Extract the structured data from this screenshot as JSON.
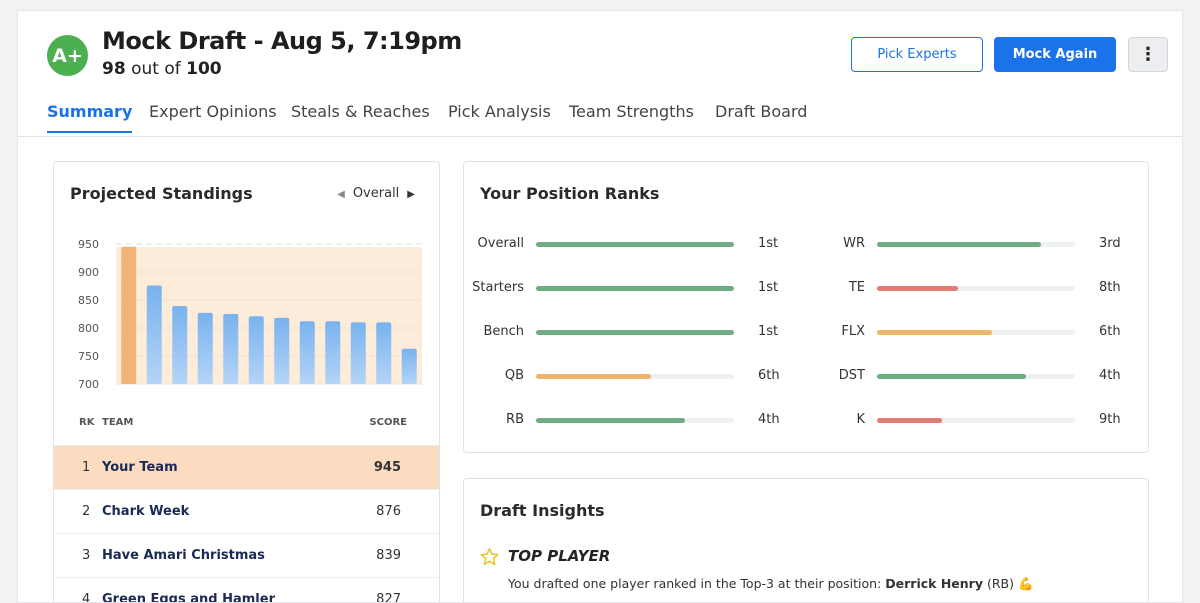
{
  "header": {
    "grade": "A+",
    "title": "Mock Draft - Aug 5, 7:19pm",
    "score": "98",
    "score_mid": "out of",
    "score_max": "100",
    "pick_experts": "Pick Experts",
    "mock_again": "Mock Again",
    "more": "⋮"
  },
  "tabs": [
    {
      "label": "Summary",
      "active": true
    },
    {
      "label": "Expert Opinions"
    },
    {
      "label": "Steals & Reaches"
    },
    {
      "label": "Pick Analysis"
    },
    {
      "label": "Team Strengths"
    },
    {
      "label": "Draft Board"
    }
  ],
  "standings": {
    "title": "Projected Standings",
    "filter": "Overall",
    "col_rk": "RK",
    "col_team": "TEAM",
    "col_score": "SCORE",
    "rows": [
      {
        "rk": "1",
        "team": "Your Team",
        "score": "945"
      },
      {
        "rk": "2",
        "team": "Chark Week",
        "score": "876"
      },
      {
        "rk": "3",
        "team": "Have Amari Christmas",
        "score": "839"
      },
      {
        "rk": "4",
        "team": "Green Eggs and Hamler",
        "score": "827"
      }
    ]
  },
  "chart_data": {
    "type": "bar",
    "categories": [
      "1",
      "2",
      "3",
      "4",
      "5",
      "6",
      "7",
      "8",
      "9",
      "10",
      "11",
      "12"
    ],
    "values": [
      945,
      876,
      839,
      827,
      825,
      821,
      818,
      812,
      812,
      810,
      810,
      763
    ],
    "ylim": [
      700,
      950
    ],
    "yticks": [
      "950",
      "900",
      "850",
      "800",
      "750",
      "700"
    ],
    "highlight_index": 0,
    "colors": {
      "highlight": "#f0b478",
      "default": "#7fb5ee",
      "band": "#fdecd9"
    }
  },
  "ranks": {
    "title": "Your Position Ranks",
    "left": [
      {
        "label": "Overall",
        "rank": "1st",
        "pct": 100,
        "color": "#6fab83"
      },
      {
        "label": "Starters",
        "rank": "1st",
        "pct": 100,
        "color": "#6fab83"
      },
      {
        "label": "Bench",
        "rank": "1st",
        "pct": 100,
        "color": "#6fab83"
      },
      {
        "label": "QB",
        "rank": "6th",
        "pct": 58,
        "color": "#efb56a"
      },
      {
        "label": "RB",
        "rank": "4th",
        "pct": 75,
        "color": "#6fab83"
      }
    ],
    "right": [
      {
        "label": "WR",
        "rank": "3rd",
        "pct": 83,
        "color": "#6fab83"
      },
      {
        "label": "TE",
        "rank": "8th",
        "pct": 41,
        "color": "#e07c72"
      },
      {
        "label": "FLX",
        "rank": "6th",
        "pct": 58,
        "color": "#efb56a"
      },
      {
        "label": "DST",
        "rank": "4th",
        "pct": 75,
        "color": "#6fab83"
      },
      {
        "label": "K",
        "rank": "9th",
        "pct": 33,
        "color": "#e07c72"
      }
    ]
  },
  "insights": {
    "title": "Draft Insights",
    "heading": "TOP PLAYER",
    "text": "You drafted one player ranked in the Top-3 at their position:",
    "player": "Derrick Henry",
    "pos": "(RB)",
    "emoji": "💪"
  }
}
